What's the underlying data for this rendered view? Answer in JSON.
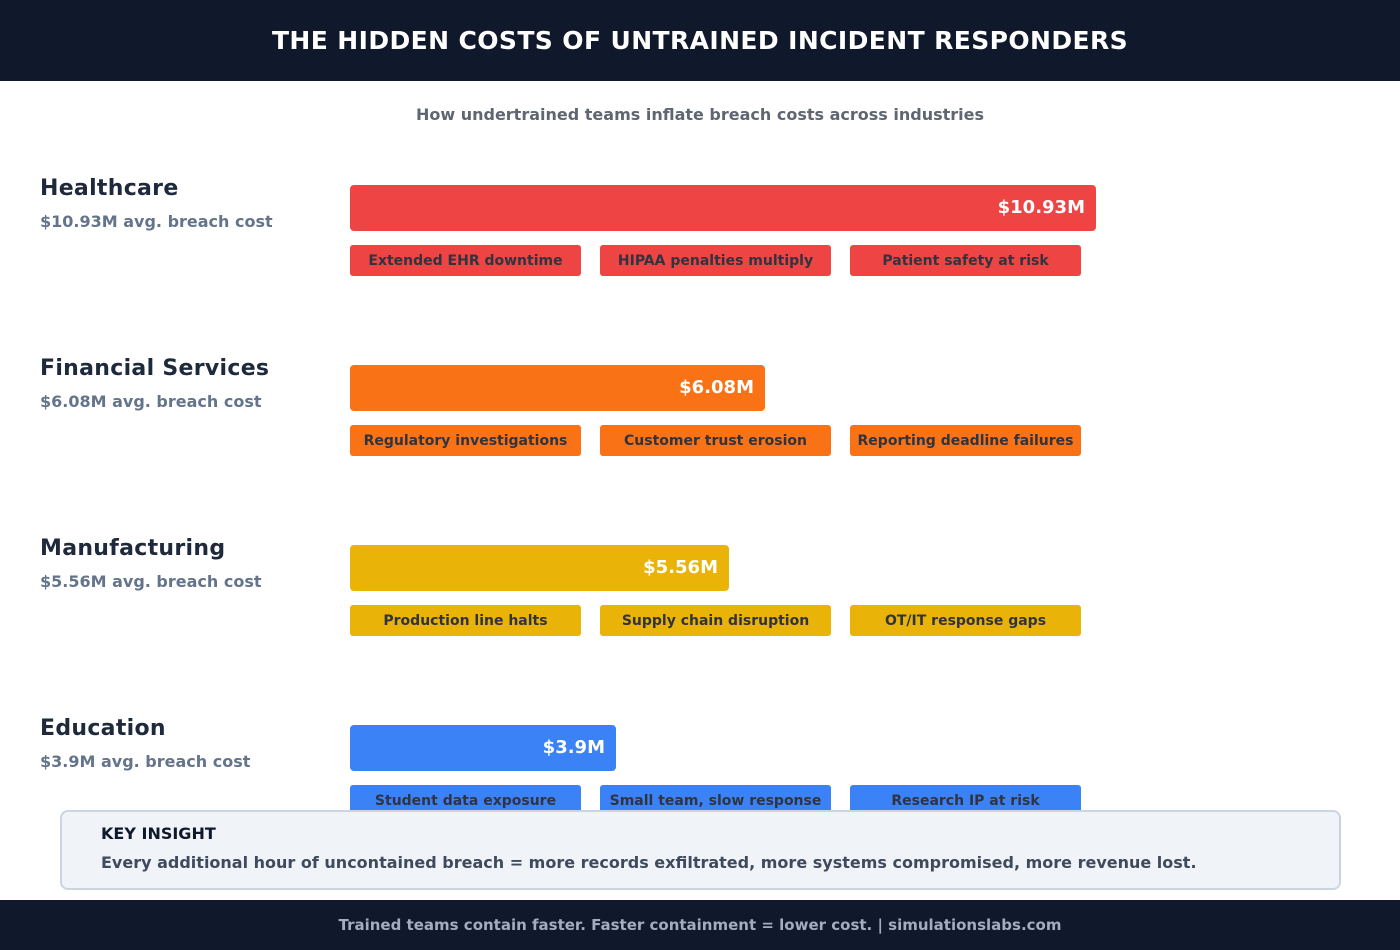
{
  "header": {
    "title": "THE HIDDEN COSTS OF UNTRAINED INCIDENT RESPONDERS"
  },
  "subtitle": "How undertrained teams inflate breach costs across industries",
  "chart_data": {
    "type": "bar",
    "orientation": "horizontal",
    "title": "THE HIDDEN COSTS OF UNTRAINED INCIDENT RESPONDERS",
    "subtitle": "How undertrained teams inflate breach costs across industries",
    "categories": [
      "Healthcare",
      "Financial Services",
      "Manufacturing",
      "Education"
    ],
    "values": [
      10.93,
      6.08,
      5.56,
      3.9
    ],
    "value_labels": [
      "$10.93M",
      "$6.08M",
      "$5.56M",
      "$3.9M"
    ],
    "cost_labels": [
      "$10.93M avg. breach cost",
      "$6.08M avg. breach cost",
      "$5.56M avg. breach cost",
      "$3.9M avg. breach cost"
    ],
    "colors": [
      "#ef4444",
      "#f97316",
      "#eab308",
      "#3b82f6"
    ],
    "tags": [
      [
        "Extended EHR downtime",
        "HIPAA penalties multiply",
        "Patient safety at risk"
      ],
      [
        "Regulatory investigations",
        "Customer trust erosion",
        "Reporting deadline failures"
      ],
      [
        "Production line halts",
        "Supply chain disruption",
        "OT/IT response gaps"
      ],
      [
        "Student data exposure",
        "Small team, slow response",
        "Research IP at risk"
      ]
    ],
    "xlim": [
      0,
      10.93
    ],
    "grid": false
  },
  "insight": {
    "title": "KEY INSIGHT",
    "text": "Every additional hour of uncontained breach = more records exfiltrated, more systems compromised, more revenue lost."
  },
  "footer": {
    "text": "Trained teams contain faster. Faster containment = lower cost.  |  simulationslabs.com"
  }
}
